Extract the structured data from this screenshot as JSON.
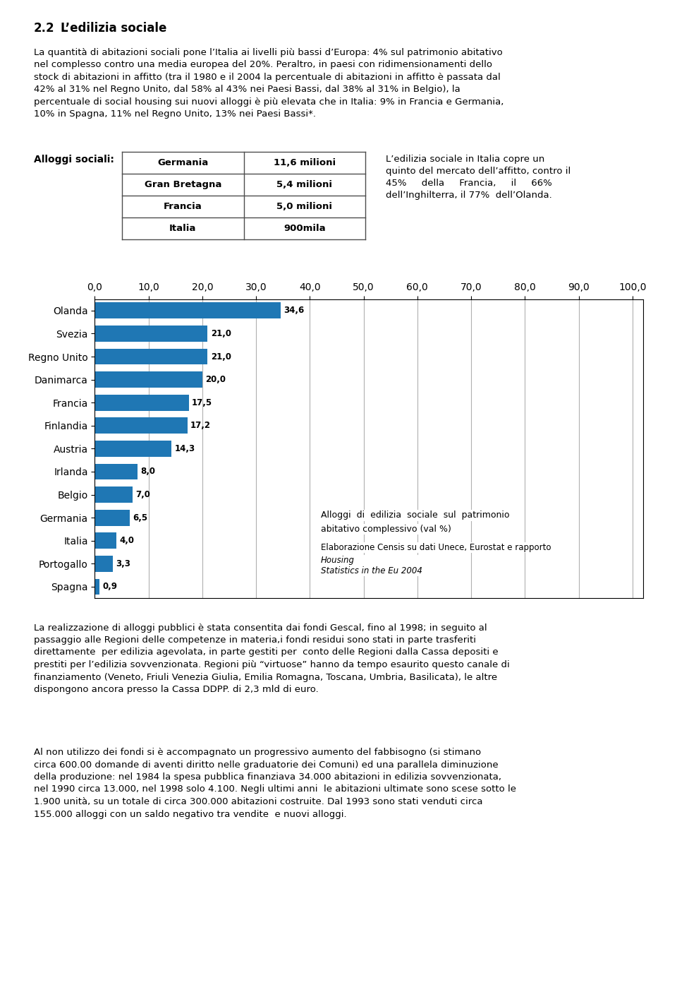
{
  "heading": [
    "2.2",
    "L’edilizia sociale"
  ],
  "paragraphs": [
    "La quantità di abitazioni sociali pone l’Italia ai livelli più bassi d’Europa: 4% sul patrimonio abitativo\nnel complesso contro una media europea del 20%. Peraltro, in paesi con ridimensionamenti dello\nstock di abitazioni in affitto (tra il 1980 e il 2004 la percentuale di abitazioni in affitto è passata dal\n42% al 31% nel Regno Unito, dal 58% al 43% nei Paesi Bassi, dal 38% al 31% in Belgio), la\npercentuale di social housing sui nuovi alloggi è più elevata che in Italia: 9% in Francia e Germania,\n10% in Spagna, 11% nel Regno Unito, 13% nei Paesi Bassi*.",
    "La realizzazione di alloggi pubblici è stata consentita dai fondi Gescal, fino al 1998; in seguito al\npassaggio alle Regioni delle competenze in materia,i fondi residui sono stati in parte trasferiti\ndirettamente  per edilizia agevolata, in parte gestiti per  conto delle Regioni dalla Cassa depositi e\nprestiti per l’edilizia sovvenzionata. Regioni più “virtuose” hanno da tempo esaurito questo canale di\nfinanziamento (Veneto, Friuli Venezia Giulia, Emilia Romagna, Toscana, Umbria, Basilicata), le altre\ndispongono ancora presso la Cassa DDPP. di 2,3 mld di euro.",
    "Al non utilizzo dei fondi si è accompagnato un progressivo aumento del fabbisogno (si stimano\ncirca 600.00 domande di aventi diritto nelle graduatorie dei Comuni) ed una parallela diminuzione\ndella produzione: nel 1984 la spesa pubblica finanziava 34.000 abitazioni in edilizia sovvenzionata,\nnel 1990 circa 13.000, nel 1998 solo 4.100. Negli ultimi anni  le abitazioni ultimate sono scese sotto le\n1.900 unità, su un totale di circa 300.000 abitazioni costruite. Dal 1993 sono stati venduti circa\n155.000 alloggi con un saldo negativo tra vendite  e nuovi alloggi."
  ],
  "table": {
    "title": "Alloggi sociali:",
    "rows": [
      [
        "Germania",
        "11,6 milioni"
      ],
      [
        "Gran Bretagna",
        "5,4 milioni"
      ],
      [
        "Francia",
        "5,0 milioni"
      ],
      [
        "Italia",
        "900mila"
      ]
    ]
  },
  "side_text": "L’edilizia sociale in Italia copre un\nquinto del mercato dell’affitto, contro il\n45%     della     Francia,     il     66%\ndell’Inghilterra, il 77%  dell’Olanda.",
  "chart_data": {
    "type": "bar",
    "orientation": "horizontal",
    "categories": [
      "Olanda",
      "Svezia",
      "Regno Unito",
      "Danimarca",
      "Francia",
      "Finlandia",
      "Austria",
      "Irlanda",
      "Belgio",
      "Germania",
      "Italia",
      "Portogallo",
      "Spagna"
    ],
    "values": [
      34.6,
      21.0,
      21.0,
      20.0,
      17.5,
      17.2,
      14.3,
      8.0,
      7.0,
      6.5,
      4.0,
      3.3,
      0.9
    ],
    "data_labels": true,
    "value_labels": [
      "34,6",
      "21,0",
      "21,0",
      "20,0",
      "17,5",
      "17,2",
      "14,3",
      "8,0",
      "7,0",
      "6,5",
      "4,0",
      "3,3",
      "0,9"
    ],
    "xlim": [
      0,
      102
    ],
    "xticks": [
      {
        "value": 0.0,
        "label": "0,0"
      },
      {
        "value": 10.0,
        "label": "10,0"
      },
      {
        "value": 20.0,
        "label": "20,0"
      },
      {
        "value": 30.0,
        "label": "30,0"
      },
      {
        "value": 40.0,
        "label": "40,0"
      },
      {
        "value": 50.0,
        "label": "50,0"
      },
      {
        "value": 60.0,
        "label": "60,0"
      },
      {
        "value": 70.0,
        "label": "70,0"
      },
      {
        "value": 80.0,
        "label": "80,0"
      },
      {
        "value": 90.0,
        "label": "90,0"
      },
      {
        "value": 100.0,
        "label": "100,0"
      }
    ],
    "grid": true,
    "annotations": [
      "Alloggi  di  edilizia  sociale  sul  patrimonio",
      "abitativo complessivo (val %)"
    ],
    "source": [
      "Elaborazione Censis su dati Unece, Eurostat e rapporto ",
      "Housing\nStatistics in the Eu 2004"
    ]
  }
}
